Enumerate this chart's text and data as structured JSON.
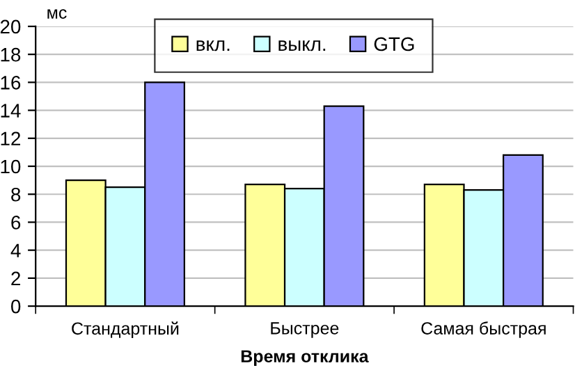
{
  "chart_data": {
    "type": "bar",
    "xlabel": "Время отклика",
    "ylabel": "мс",
    "categories": [
      "Стандартный",
      "Быстрее",
      "Самая быстрая"
    ],
    "series": [
      {
        "name": "вкл.",
        "color": "#ffff99",
        "values": [
          9.0,
          8.7,
          8.7
        ]
      },
      {
        "name": "выкл.",
        "color": "#ccffff",
        "values": [
          8.5,
          8.4,
          8.3
        ]
      },
      {
        "name": "GTG",
        "color": "#9999ff",
        "values": [
          16.0,
          14.3,
          10.8
        ]
      }
    ],
    "ylim": [
      0,
      20
    ],
    "yticks": [
      0,
      2,
      4,
      6,
      8,
      10,
      12,
      14,
      16,
      18,
      20
    ],
    "grid": "y",
    "legend": "top"
  }
}
